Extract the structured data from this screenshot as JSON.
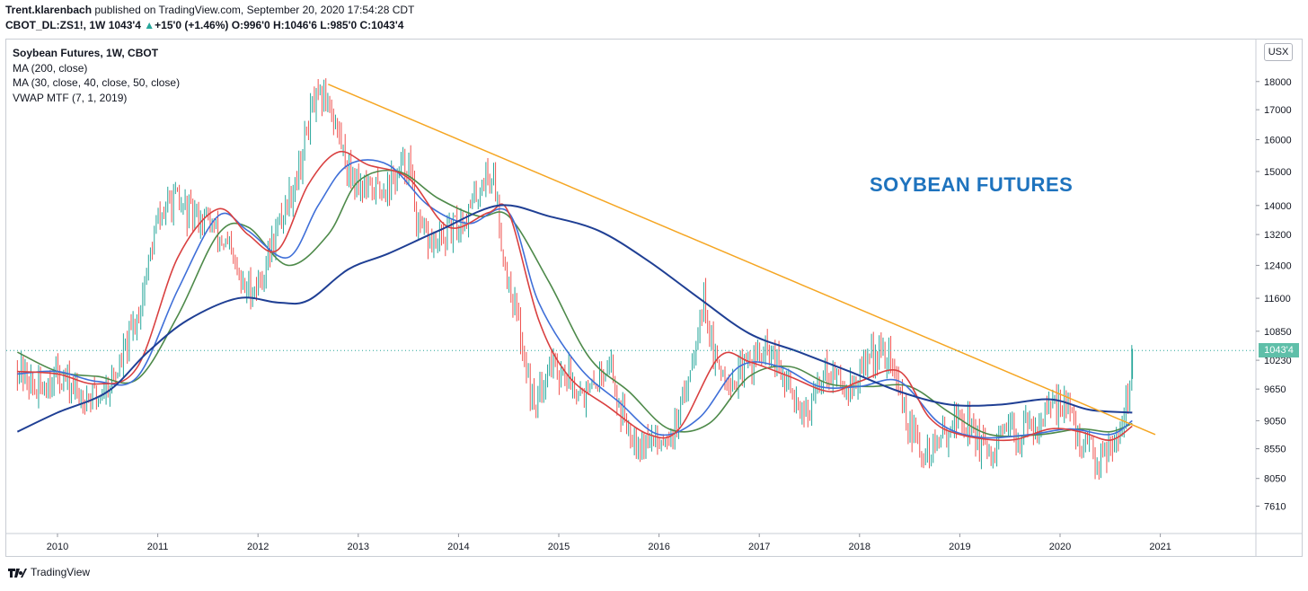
{
  "header": {
    "author": "Trent.klarenbach",
    "published_text": " published on TradingView.com, September 20, 2020 17:54:28 CDT",
    "symbol": "CBOT_DL:ZS1!, 1W",
    "last": "1043'4",
    "change": "+15'0 (+1.46%)",
    "o_label": "O:",
    "o": "996'0",
    "h_label": "H:",
    "h": "1046'6",
    "l_label": "L:",
    "l": "985'0",
    "c_label": "C:",
    "c": "1043'4"
  },
  "legend": {
    "title": "Soybean Futures, 1W, CBOT",
    "ind1": "MA (200, close)",
    "ind2": "MA (30, close, 40, close, 50, close)",
    "ind3": "VWAP MTF (7, 1, 2019)"
  },
  "annotation": "SOYBEAN FUTURES",
  "currency": "USX",
  "last_price_tag": "1043'4",
  "footer": {
    "brand": "TradingView"
  },
  "colors": {
    "up": "#26a69a",
    "down": "#ef5350",
    "ma200": "#1f3f94",
    "ma30": "#d94040",
    "ma40": "#3f6fd8",
    "ma50": "#4e8a4a",
    "trendline": "#f5a623",
    "annotation": "#1e73be"
  },
  "chart_data": {
    "type": "candlestick",
    "title": "Soybean Futures, 1W, CBOT",
    "price_scale": "log",
    "y_ticks": [
      {
        "label": "18000",
        "value": 1800
      },
      {
        "label": "17000",
        "value": 1700
      },
      {
        "label": "16000",
        "value": 1600
      },
      {
        "label": "15000",
        "value": 1500
      },
      {
        "label": "14000",
        "value": 1400
      },
      {
        "label": "13200",
        "value": 1320
      },
      {
        "label": "12400",
        "value": 1240
      },
      {
        "label": "11600",
        "value": 1160
      },
      {
        "label": "10850",
        "value": 1085
      },
      {
        "label": "10230",
        "value": 1023
      },
      {
        "label": "9650",
        "value": 965
      },
      {
        "label": "9050",
        "value": 905
      },
      {
        "label": "8550",
        "value": 855
      },
      {
        "label": "8050",
        "value": 805
      },
      {
        "label": "7610",
        "value": 761
      }
    ],
    "x_ticks": [
      "2010",
      "2011",
      "2012",
      "2013",
      "2014",
      "2015",
      "2016",
      "2017",
      "2018",
      "2019",
      "2020",
      "2021"
    ],
    "price_path": [
      [
        2009.6,
        1010
      ],
      [
        2009.8,
        960
      ],
      [
        2010.0,
        1000
      ],
      [
        2010.2,
        955
      ],
      [
        2010.4,
        950
      ],
      [
        2010.6,
        1000
      ],
      [
        2010.8,
        1120
      ],
      [
        2011.0,
        1360
      ],
      [
        2011.15,
        1420
      ],
      [
        2011.3,
        1380
      ],
      [
        2011.5,
        1360
      ],
      [
        2011.7,
        1280
      ],
      [
        2011.85,
        1180
      ],
      [
        2012.0,
        1190
      ],
      [
        2012.2,
        1340
      ],
      [
        2012.4,
        1500
      ],
      [
        2012.55,
        1720
      ],
      [
        2012.7,
        1740
      ],
      [
        2012.9,
        1510
      ],
      [
        2013.1,
        1440
      ],
      [
        2013.3,
        1460
      ],
      [
        2013.5,
        1530
      ],
      [
        2013.6,
        1330
      ],
      [
        2013.75,
        1290
      ],
      [
        2013.9,
        1320
      ],
      [
        2014.1,
        1380
      ],
      [
        2014.25,
        1480
      ],
      [
        2014.35,
        1490
      ],
      [
        2014.45,
        1260
      ],
      [
        2014.6,
        1100
      ],
      [
        2014.75,
        930
      ],
      [
        2014.9,
        1020
      ],
      [
        2015.1,
        990
      ],
      [
        2015.3,
        950
      ],
      [
        2015.5,
        1030
      ],
      [
        2015.6,
        930
      ],
      [
        2015.8,
        870
      ],
      [
        2016.0,
        870
      ],
      [
        2016.2,
        900
      ],
      [
        2016.35,
        1060
      ],
      [
        2016.45,
        1170
      ],
      [
        2016.55,
        1020
      ],
      [
        2016.75,
        980
      ],
      [
        2016.95,
        1030
      ],
      [
        2017.1,
        1040
      ],
      [
        2017.3,
        960
      ],
      [
        2017.5,
        920
      ],
      [
        2017.65,
        1010
      ],
      [
        2017.8,
        980
      ],
      [
        2017.95,
        970
      ],
      [
        2018.1,
        1040
      ],
      [
        2018.3,
        1030
      ],
      [
        2018.5,
        890
      ],
      [
        2018.65,
        840
      ],
      [
        2018.8,
        870
      ],
      [
        2018.95,
        910
      ],
      [
        2019.1,
        900
      ],
      [
        2019.3,
        830
      ],
      [
        2019.45,
        880
      ],
      [
        2019.6,
        880
      ],
      [
        2019.75,
        900
      ],
      [
        2019.9,
        920
      ],
      [
        2020.05,
        950
      ],
      [
        2020.15,
        880
      ],
      [
        2020.3,
        850
      ],
      [
        2020.4,
        840
      ],
      [
        2020.5,
        870
      ],
      [
        2020.6,
        890
      ],
      [
        2020.65,
        930
      ],
      [
        2020.7,
        985
      ],
      [
        2020.72,
        1043.5
      ]
    ],
    "ma200": [
      [
        2009.6,
        885
      ],
      [
        2010.0,
        920
      ],
      [
        2010.5,
        960
      ],
      [
        2010.9,
        1040
      ],
      [
        2011.3,
        1110
      ],
      [
        2011.8,
        1160
      ],
      [
        2012.2,
        1150
      ],
      [
        2012.5,
        1155
      ],
      [
        2012.9,
        1230
      ],
      [
        2013.3,
        1270
      ],
      [
        2013.8,
        1330
      ],
      [
        2014.4,
        1400
      ],
      [
        2014.9,
        1370
      ],
      [
        2015.4,
        1330
      ],
      [
        2015.9,
        1250
      ],
      [
        2016.4,
        1160
      ],
      [
        2016.9,
        1080
      ],
      [
        2017.4,
        1040
      ],
      [
        2017.9,
        1000
      ],
      [
        2018.4,
        960
      ],
      [
        2018.9,
        935
      ],
      [
        2019.4,
        935
      ],
      [
        2019.9,
        945
      ],
      [
        2020.3,
        925
      ],
      [
        2020.72,
        920
      ]
    ],
    "ma30": [
      [
        2009.6,
        1000
      ],
      [
        2010.0,
        995
      ],
      [
        2010.4,
        975
      ],
      [
        2010.8,
        1010
      ],
      [
        2011.2,
        1260
      ],
      [
        2011.6,
        1390
      ],
      [
        2011.9,
        1320
      ],
      [
        2012.2,
        1280
      ],
      [
        2012.5,
        1460
      ],
      [
        2012.8,
        1560
      ],
      [
        2013.1,
        1520
      ],
      [
        2013.5,
        1480
      ],
      [
        2013.9,
        1340
      ],
      [
        2014.3,
        1380
      ],
      [
        2014.5,
        1380
      ],
      [
        2014.8,
        1110
      ],
      [
        2015.1,
        990
      ],
      [
        2015.5,
        930
      ],
      [
        2015.9,
        880
      ],
      [
        2016.2,
        890
      ],
      [
        2016.6,
        1030
      ],
      [
        2016.9,
        1020
      ],
      [
        2017.3,
        990
      ],
      [
        2017.7,
        960
      ],
      [
        2018.0,
        980
      ],
      [
        2018.4,
        1000
      ],
      [
        2018.7,
        910
      ],
      [
        2019.0,
        880
      ],
      [
        2019.5,
        870
      ],
      [
        2019.9,
        890
      ],
      [
        2020.2,
        885
      ],
      [
        2020.5,
        870
      ],
      [
        2020.72,
        895
      ]
    ],
    "ma40": [
      [
        2009.6,
        995
      ],
      [
        2010.0,
        1000
      ],
      [
        2010.4,
        980
      ],
      [
        2010.8,
        990
      ],
      [
        2011.2,
        1180
      ],
      [
        2011.6,
        1370
      ],
      [
        2011.9,
        1330
      ],
      [
        2012.3,
        1260
      ],
      [
        2012.6,
        1400
      ],
      [
        2012.9,
        1520
      ],
      [
        2013.3,
        1520
      ],
      [
        2013.7,
        1400
      ],
      [
        2014.1,
        1350
      ],
      [
        2014.5,
        1380
      ],
      [
        2014.8,
        1150
      ],
      [
        2015.2,
        1010
      ],
      [
        2015.6,
        940
      ],
      [
        2016.0,
        880
      ],
      [
        2016.4,
        910
      ],
      [
        2016.8,
        1010
      ],
      [
        2017.2,
        1010
      ],
      [
        2017.6,
        970
      ],
      [
        2018.0,
        970
      ],
      [
        2018.4,
        980
      ],
      [
        2018.8,
        900
      ],
      [
        2019.2,
        875
      ],
      [
        2019.7,
        880
      ],
      [
        2020.1,
        890
      ],
      [
        2020.5,
        880
      ],
      [
        2020.72,
        905
      ]
    ],
    "ma50": [
      [
        2009.6,
        1040
      ],
      [
        2010.0,
        1000
      ],
      [
        2010.4,
        990
      ],
      [
        2010.8,
        985
      ],
      [
        2011.2,
        1120
      ],
      [
        2011.6,
        1320
      ],
      [
        2011.9,
        1340
      ],
      [
        2012.3,
        1240
      ],
      [
        2012.7,
        1320
      ],
      [
        2013.0,
        1470
      ],
      [
        2013.4,
        1500
      ],
      [
        2013.8,
        1420
      ],
      [
        2014.2,
        1370
      ],
      [
        2014.5,
        1370
      ],
      [
        2014.9,
        1200
      ],
      [
        2015.3,
        1030
      ],
      [
        2015.7,
        960
      ],
      [
        2016.1,
        890
      ],
      [
        2016.5,
        900
      ],
      [
        2016.9,
        990
      ],
      [
        2017.3,
        1010
      ],
      [
        2017.7,
        975
      ],
      [
        2018.1,
        970
      ],
      [
        2018.5,
        970
      ],
      [
        2018.9,
        920
      ],
      [
        2019.3,
        880
      ],
      [
        2019.8,
        880
      ],
      [
        2020.2,
        890
      ],
      [
        2020.5,
        885
      ],
      [
        2020.72,
        900
      ]
    ],
    "trendline": [
      [
        2012.7,
        1790
      ],
      [
        2020.95,
        880
      ]
    ],
    "last_price": 1043.5
  }
}
